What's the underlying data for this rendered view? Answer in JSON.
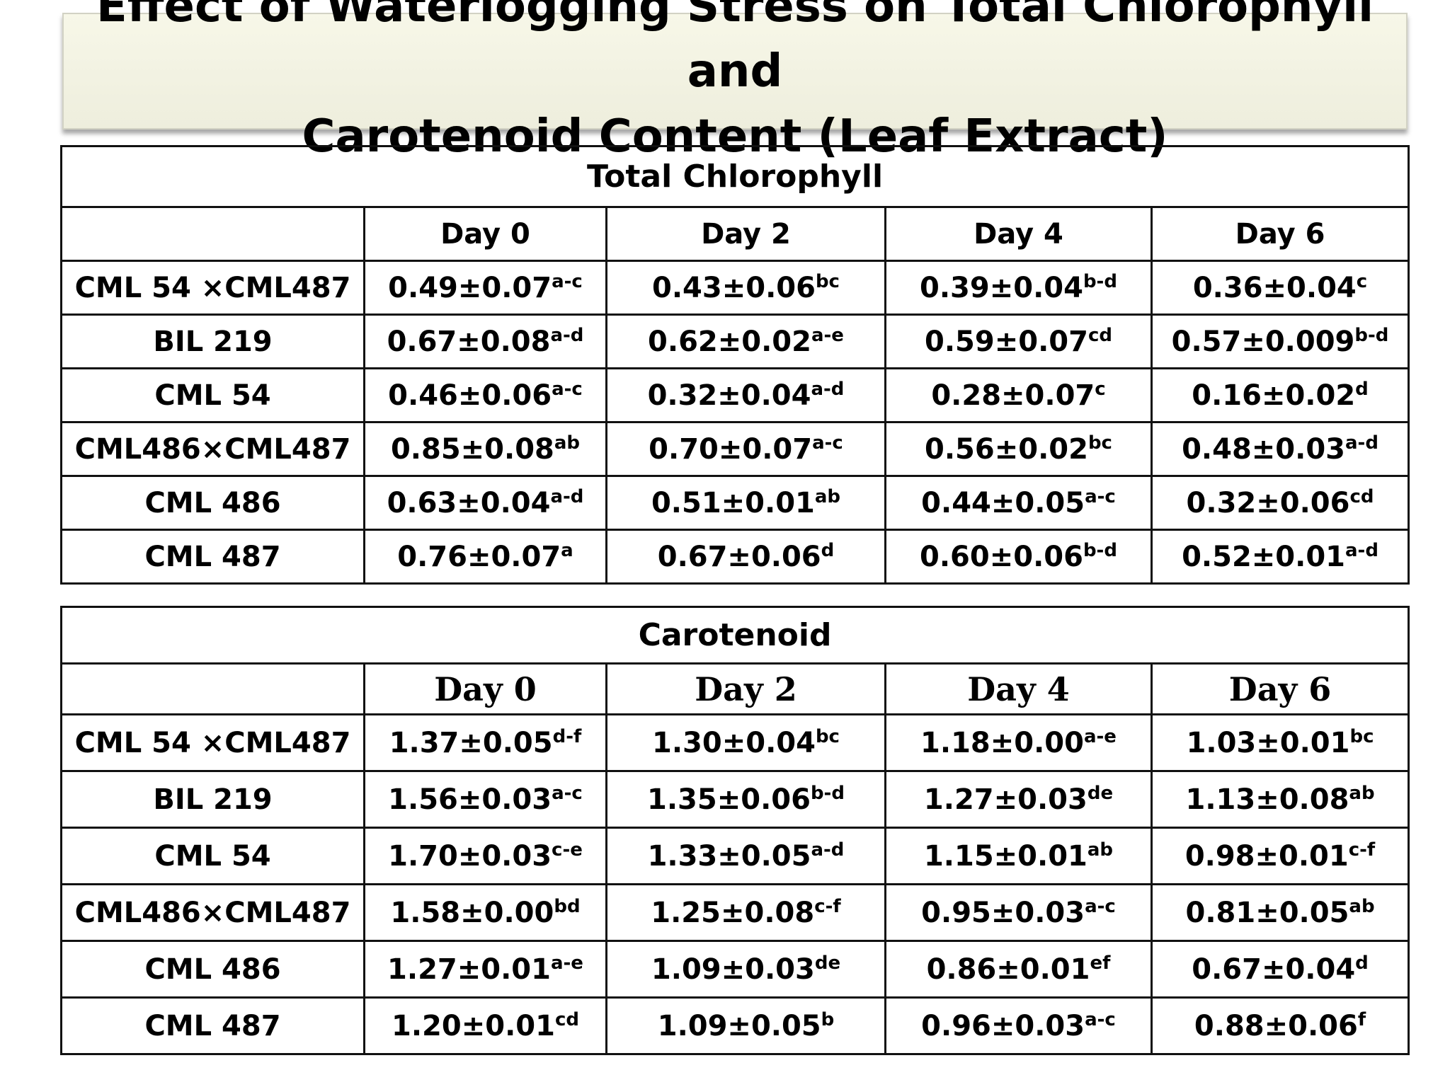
{
  "title": {
    "line1": "Effect of Waterlogging Stress on Total Chlorophyll  and",
    "line2": "Carotenoid Content (Leaf Extract)"
  },
  "colors": {
    "purple": "#7030a0",
    "red": "#c00000",
    "black": "#000000"
  },
  "chlorophyll": {
    "title": "Total  Chlorophyll",
    "days": [
      "Day 0",
      "Day 2",
      "Day 4",
      "Day 6"
    ],
    "rows": [
      {
        "genotype": "CML 54 ×CML487",
        "color": "purple",
        "cells": [
          {
            "value": "0.49±0.07",
            "sup": "a-c"
          },
          {
            "value": "0.43±0.06",
            "sup": "bc"
          },
          {
            "value": "0.39±0.04",
            "sup": "b-d"
          },
          {
            "value": "0.36±0.04",
            "sup": "c"
          }
        ]
      },
      {
        "genotype": "BIL 219",
        "color": "purple",
        "cells": [
          {
            "value": "0.67±0.08",
            "sup": "a-d"
          },
          {
            "value": "0.62±0.02",
            "sup": "a-e"
          },
          {
            "value": "0.59±0.07",
            "sup": "cd"
          },
          {
            "value": "0.57±0.009",
            "sup": "b-d"
          }
        ]
      },
      {
        "genotype": "CML 54",
        "color": "red",
        "cells": [
          {
            "value": "0.46±0.06",
            "sup": "a-c"
          },
          {
            "value": "0.32±0.04",
            "sup": "a-d"
          },
          {
            "value": "0.28±0.07",
            "sup": "c"
          },
          {
            "value": "0.16±0.02",
            "sup": "d"
          }
        ]
      },
      {
        "genotype": "CML486×CML487",
        "color": "black",
        "cells": [
          {
            "value": "0.85±0.08",
            "sup": "ab"
          },
          {
            "value": "0.70±0.07",
            "sup": "a-c"
          },
          {
            "value": "0.56±0.02",
            "sup": "bc"
          },
          {
            "value": "0.48±0.03",
            "sup": "a-d"
          }
        ]
      },
      {
        "genotype": "CML 486",
        "color": "red",
        "cells": [
          {
            "value": "0.63±0.04",
            "sup": "a-d"
          },
          {
            "value": "0.51±0.01",
            "sup": "ab"
          },
          {
            "value": "0.44±0.05",
            "sup": "a-c"
          },
          {
            "value": "0.32±0.06",
            "sup": "cd"
          }
        ]
      },
      {
        "genotype": "CML 487",
        "color": "black",
        "cells": [
          {
            "value": "0.76±0.07",
            "sup": "a"
          },
          {
            "value": "0.67±0.06",
            "sup": "d"
          },
          {
            "value": "0.60±0.06",
            "sup": "b-d"
          },
          {
            "value": "0.52±0.01",
            "sup": "a-d"
          }
        ]
      }
    ]
  },
  "carotenoid": {
    "title": "Carotenoid",
    "days": [
      "Day 0",
      "Day 2",
      "Day 4",
      "Day 6"
    ],
    "rows": [
      {
        "genotype": "CML 54 ×CML487",
        "color": "black",
        "cells": [
          {
            "value": "1.37±0.05",
            "sup": "d-f"
          },
          {
            "value": "1.30±0.04",
            "sup": "bc"
          },
          {
            "value": "1.18±0.00",
            "sup": "a-e"
          },
          {
            "value": "1.03±0.01",
            "sup": "bc"
          }
        ]
      },
      {
        "genotype": "BIL 219",
        "color": "purple",
        "cells": [
          {
            "value": "1.56±0.03",
            "sup": "a-c"
          },
          {
            "value": "1.35±0.06",
            "sup": "b-d"
          },
          {
            "value": "1.27±0.03",
            "sup": "de"
          },
          {
            "value": "1.13±0.08",
            "sup": "ab"
          }
        ]
      },
      {
        "genotype": "CML 54",
        "color": "red",
        "cells": [
          {
            "value": "1.70±0.03",
            "sup": "c-e"
          },
          {
            "value": "1.33±0.05",
            "sup": "a-d"
          },
          {
            "value": "1.15±0.01",
            "sup": "ab"
          },
          {
            "value": "0.98±0.01",
            "sup": "c-f"
          }
        ]
      },
      {
        "genotype": "CML486×CML487",
        "color": "black",
        "cells": [
          {
            "value": "1.58±0.00",
            "sup": "bd"
          },
          {
            "value": "1.25±0.08",
            "sup": "c-f"
          },
          {
            "value": "0.95±0.03",
            "sup": "a-c"
          },
          {
            "value": "0.81±0.05",
            "sup": "ab"
          }
        ]
      },
      {
        "genotype": "CML 486",
        "color": "black",
        "cells": [
          {
            "value": "1.27±0.01",
            "sup": "a-e"
          },
          {
            "value": "1.09±0.03",
            "sup": "de"
          },
          {
            "value": "0.86±0.01",
            "sup": "ef"
          },
          {
            "value": "0.67±0.04",
            "sup": "d"
          }
        ]
      },
      {
        "genotype": "CML 487",
        "color": "purple",
        "cells": [
          {
            "value": "1.20±0.01",
            "sup": "cd"
          },
          {
            "value": "1.09±0.05",
            "sup": "b"
          },
          {
            "value": "0.96±0.03",
            "sup": "a-c"
          },
          {
            "value": "0.88±0.06",
            "sup": "f"
          }
        ]
      }
    ]
  }
}
